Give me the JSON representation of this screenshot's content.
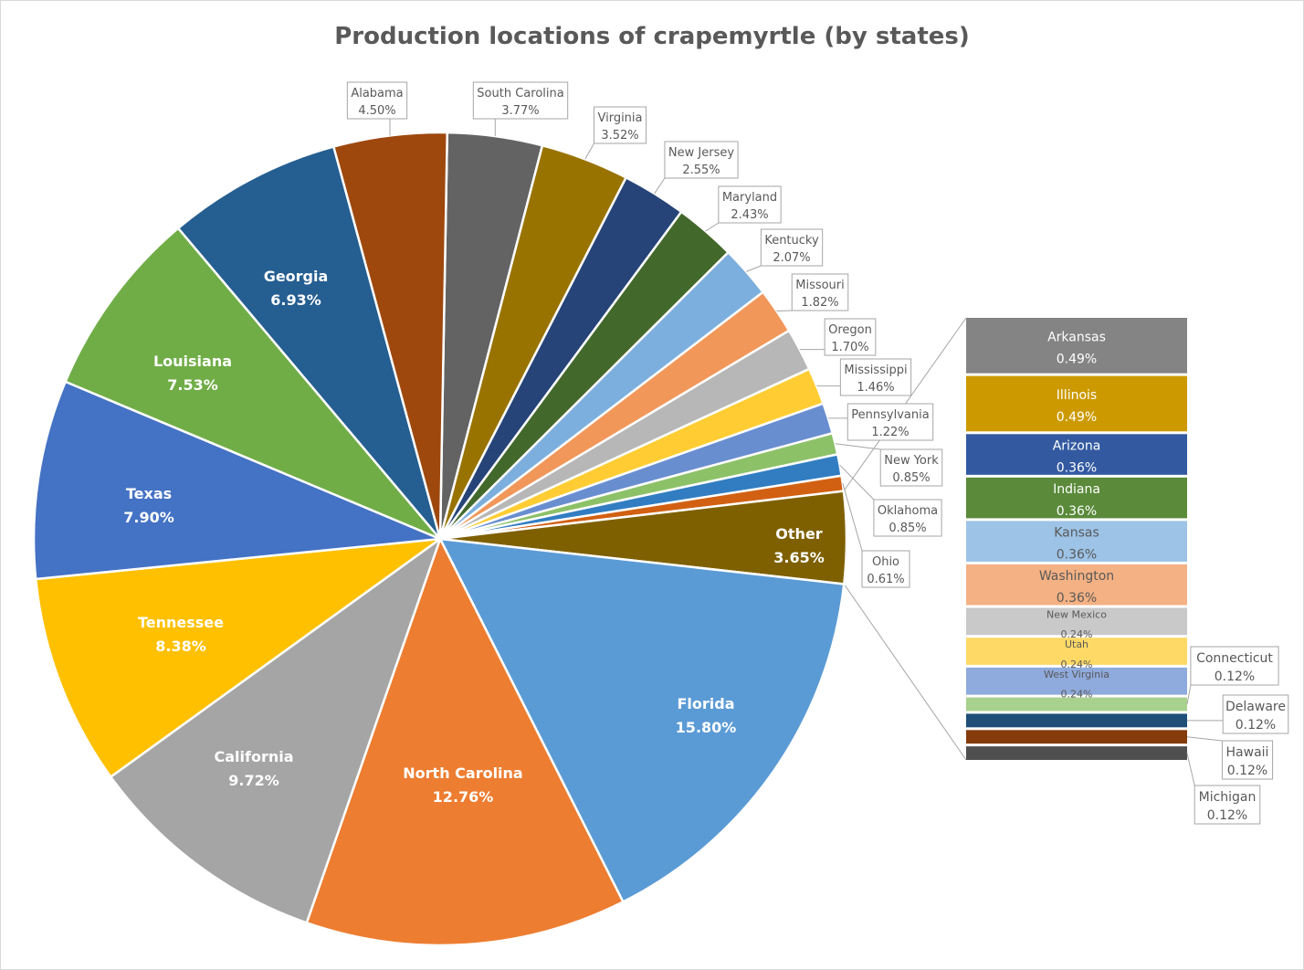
{
  "chart_data": {
    "type": "pie",
    "subtype": "bar-of-pie",
    "title": "Production locations of crapemyrtle (by states)",
    "unit": "%",
    "slices": [
      {
        "label": "South Carolina",
        "value": 3.77,
        "color": "#636363",
        "label_style": "callout"
      },
      {
        "label": "Virginia",
        "value": 3.52,
        "color": "#997300",
        "label_style": "callout"
      },
      {
        "label": "New Jersey",
        "value": 2.55,
        "color": "#264478",
        "label_style": "callout"
      },
      {
        "label": "Maryland",
        "value": 2.43,
        "color": "#43682B",
        "label_style": "callout"
      },
      {
        "label": "Kentucky",
        "value": 2.07,
        "color": "#7CAFDD",
        "label_style": "callout"
      },
      {
        "label": "Missouri",
        "value": 1.82,
        "color": "#F1975A",
        "label_style": "callout"
      },
      {
        "label": "Oregon",
        "value": 1.7,
        "color": "#B7B7B7",
        "label_style": "callout"
      },
      {
        "label": "Mississippi",
        "value": 1.46,
        "color": "#FFCD33",
        "label_style": "callout"
      },
      {
        "label": "Pennsylvania",
        "value": 1.22,
        "color": "#698ED0",
        "label_style": "callout"
      },
      {
        "label": "New York",
        "value": 0.85,
        "color": "#8CC168",
        "label_style": "callout"
      },
      {
        "label": "Oklahoma",
        "value": 0.85,
        "color": "#327DC2",
        "label_style": "callout"
      },
      {
        "label": "Ohio",
        "value": 0.61,
        "color": "#D26012",
        "label_style": "callout"
      },
      {
        "label": "Other",
        "value": 3.65,
        "color": "#7F6000",
        "label_style": "inside"
      },
      {
        "label": "Florida",
        "value": 15.8,
        "color": "#5B9BD5",
        "label_style": "inside"
      },
      {
        "label": "North Carolina",
        "value": 12.76,
        "color": "#ED7D31",
        "label_style": "inside"
      },
      {
        "label": "California",
        "value": 9.72,
        "color": "#A5A5A5",
        "label_style": "inside"
      },
      {
        "label": "Tennessee",
        "value": 8.38,
        "color": "#FFC000",
        "label_style": "inside"
      },
      {
        "label": "Texas",
        "value": 7.9,
        "color": "#4472C4",
        "label_style": "inside"
      },
      {
        "label": "Louisiana",
        "value": 7.53,
        "color": "#70AD47",
        "label_style": "inside"
      },
      {
        "label": "Georgia",
        "value": 6.93,
        "color": "#255E91",
        "label_style": "inside"
      },
      {
        "label": "Alabama",
        "value": 4.5,
        "color": "#9E480E",
        "label_style": "callout"
      }
    ],
    "other_breakdown": [
      {
        "label": "Arkansas",
        "value": 0.49,
        "color": "#848484",
        "text_color": "#ffffff"
      },
      {
        "label": "Illinois",
        "value": 0.49,
        "color": "#CC9A00",
        "text_color": "#ffffff"
      },
      {
        "label": "Arizona",
        "value": 0.36,
        "color": "#335AA1",
        "text_color": "#ffffff"
      },
      {
        "label": "Indiana",
        "value": 0.36,
        "color": "#5A8A3A",
        "text_color": "#ffffff"
      },
      {
        "label": "Kansas",
        "value": 0.36,
        "color": "#9DC3E6",
        "text_color": "#595959"
      },
      {
        "label": "Washington",
        "value": 0.36,
        "color": "#F4B183",
        "text_color": "#595959"
      },
      {
        "label": "New Mexico",
        "value": 0.24,
        "color": "#C9C9C9",
        "text_color": "#595959"
      },
      {
        "label": "Utah",
        "value": 0.24,
        "color": "#FFD966",
        "text_color": "#595959"
      },
      {
        "label": "West Virginia",
        "value": 0.24,
        "color": "#8FAADC",
        "text_color": "#595959"
      },
      {
        "label": "Connecticut",
        "value": 0.12,
        "color": "#A9D18E",
        "label_style": "callout"
      },
      {
        "label": "Delaware",
        "value": 0.12,
        "color": "#1F4E79",
        "label_style": "callout"
      },
      {
        "label": "Hawaii",
        "value": 0.12,
        "color": "#843C0C",
        "label_style": "callout"
      },
      {
        "label": "Michigan",
        "value": 0.12,
        "color": "#4F4F4F",
        "label_style": "callout"
      }
    ],
    "legend": "none"
  }
}
